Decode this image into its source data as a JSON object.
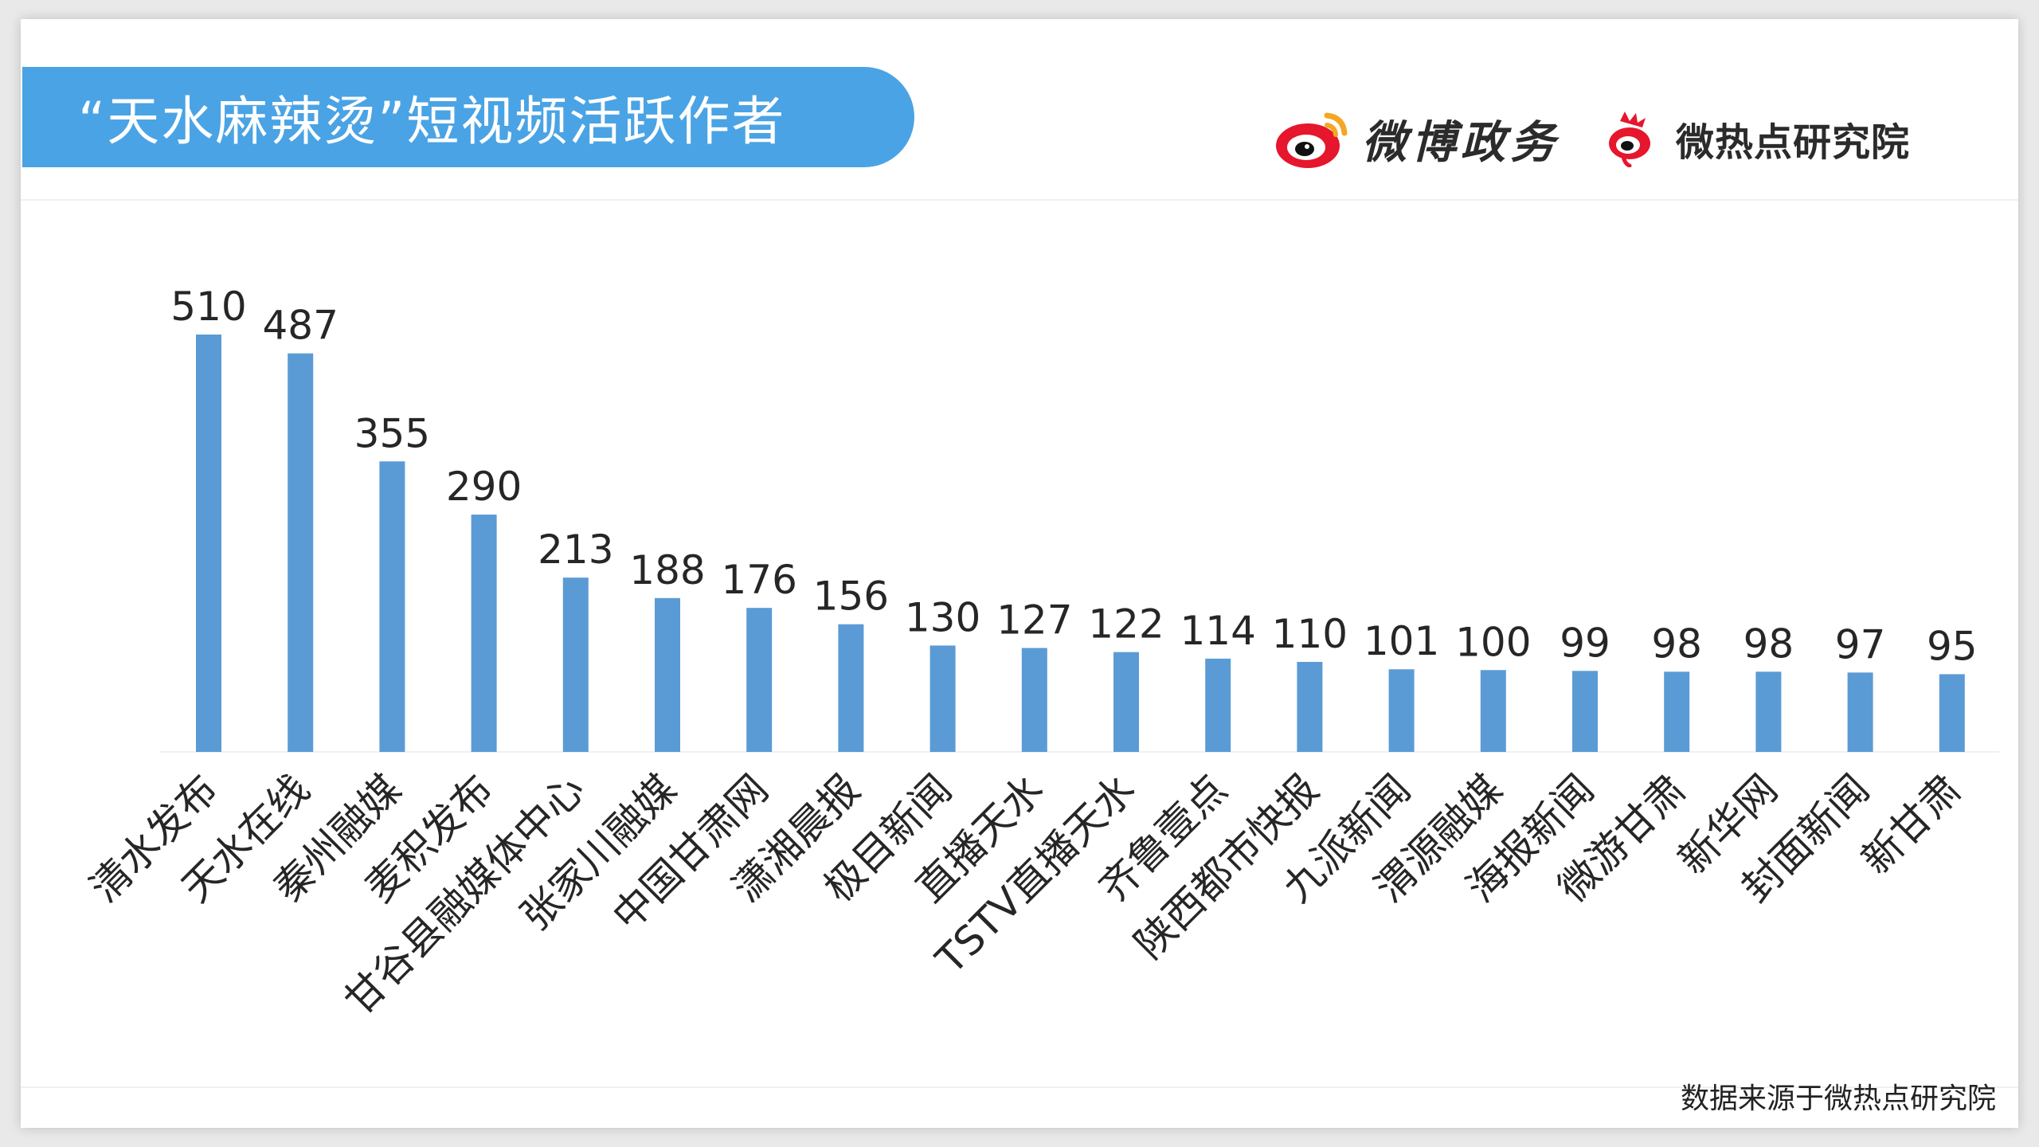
{
  "header": {
    "title": "“天水麻辣烫”短视频活跃作者",
    "logo_weibo_text": "微博政务",
    "logo_hot_text": "微热点研究院",
    "logo_weibo_icon": "weibo-eye-icon",
    "logo_hot_icon": "weibo-eye-icon"
  },
  "footer": {
    "source": "数据来源于微热点研究院"
  },
  "colors": {
    "banner": "#4aa3e4",
    "bar": "#5b9bd5",
    "weibo_red": "#e6162d",
    "weibo_orange": "#f5a623"
  },
  "chart_data": {
    "type": "bar",
    "title": "“天水麻辣烫”短视频活跃作者",
    "xlabel": "",
    "ylabel": "",
    "ylim": [
      0,
      520
    ],
    "grid": false,
    "categories": [
      "清水发布",
      "天水在线",
      "秦州融媒",
      "麦积发布",
      "甘谷县融媒体中心",
      "张家川融媒",
      "中国甘肃网",
      "潇湘晨报",
      "极目新闻",
      "直播天水",
      "TSTV直播天水",
      "齐鲁壹点",
      "陕西都市快报",
      "九派新闻",
      "渭源融媒",
      "海报新闻",
      "微游甘肃",
      "新华网",
      "封面新闻",
      "新甘肃"
    ],
    "values": [
      510,
      487,
      355,
      290,
      213,
      188,
      176,
      156,
      130,
      127,
      122,
      114,
      110,
      101,
      100,
      99,
      98,
      98,
      97,
      95
    ]
  }
}
